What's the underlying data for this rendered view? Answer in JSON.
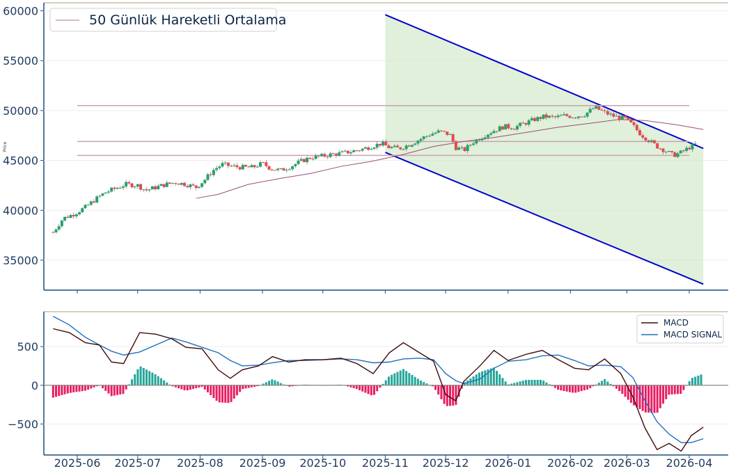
{
  "chart_data": [
    {
      "type": "candlestick",
      "ylabel": "Price",
      "ylim": [
        32000,
        60800
      ],
      "yticks": [
        35000,
        40000,
        45000,
        50000,
        55000,
        60000
      ],
      "ytick_labels": [
        "35000",
        "40000",
        "45000",
        "50000",
        "55000",
        "60000"
      ],
      "xticks": [
        "2025-06",
        "2025-07",
        "2025-08",
        "2025-09",
        "2025-10",
        "2025-11",
        "2025-12",
        "2026-01",
        "2026-02",
        "2026-03",
        "2026-04"
      ],
      "grid": true,
      "legend": {
        "placement": "top-left",
        "entries": [
          "50 Günlük Hareketli Ortalama"
        ]
      },
      "colors": {
        "up": "#26a269",
        "down": "#e8474f",
        "ma": "#9b4d73",
        "channel": "#0000cc",
        "channel_fill": "#cfe8c6",
        "hline": "#c9a0b4"
      },
      "horizontal_levels": [
        50500,
        46900,
        45500
      ],
      "channel": {
        "start": "2025-11-01",
        "end": "2026-04-08",
        "upper": [
          59600,
          46200
        ],
        "lower": [
          45800,
          32600
        ]
      },
      "price_points": [
        [
          "2025-05-20",
          37800
        ],
        [
          "2025-05-25",
          39200
        ],
        [
          "2025-05-30",
          39600
        ],
        [
          "2025-06-05",
          40300
        ],
        [
          "2025-06-10",
          41100
        ],
        [
          "2025-06-15",
          41800
        ],
        [
          "2025-06-20",
          42200
        ],
        [
          "2025-06-25",
          42600
        ],
        [
          "2025-07-01",
          42500
        ],
        [
          "2025-07-05",
          42000
        ],
        [
          "2025-07-10",
          42300
        ],
        [
          "2025-07-15",
          42600
        ],
        [
          "2025-07-20",
          42800
        ],
        [
          "2025-07-25",
          42600
        ],
        [
          "2025-07-30",
          42300
        ],
        [
          "2025-08-03",
          43000
        ],
        [
          "2025-08-08",
          44100
        ],
        [
          "2025-08-12",
          44600
        ],
        [
          "2025-08-17",
          44400
        ],
        [
          "2025-08-22",
          44300
        ],
        [
          "2025-08-27",
          44300
        ],
        [
          "2025-09-01",
          44700
        ],
        [
          "2025-09-05",
          44200
        ],
        [
          "2025-09-10",
          44000
        ],
        [
          "2025-09-15",
          44400
        ],
        [
          "2025-09-20",
          44900
        ],
        [
          "2025-09-25",
          45300
        ],
        [
          "2025-09-30",
          45400
        ],
        [
          "2025-10-05",
          45600
        ],
        [
          "2025-10-10",
          45700
        ],
        [
          "2025-10-15",
          45900
        ],
        [
          "2025-10-20",
          46100
        ],
        [
          "2025-10-25",
          46400
        ],
        [
          "2025-10-30",
          46700
        ],
        [
          "2025-11-03",
          46300
        ],
        [
          "2025-11-08",
          46200
        ],
        [
          "2025-11-13",
          46600
        ],
        [
          "2025-11-18",
          47100
        ],
        [
          "2025-11-23",
          47600
        ],
        [
          "2025-11-28",
          47900
        ],
        [
          "2025-12-03",
          47600
        ],
        [
          "2025-12-06",
          46300
        ],
        [
          "2025-12-10",
          46000
        ],
        [
          "2025-12-15",
          46900
        ],
        [
          "2025-12-20",
          47500
        ],
        [
          "2025-12-25",
          48000
        ],
        [
          "2025-12-30",
          48400
        ],
        [
          "2026-01-04",
          48300
        ],
        [
          "2026-01-09",
          48700
        ],
        [
          "2026-01-14",
          49100
        ],
        [
          "2026-01-19",
          49400
        ],
        [
          "2026-01-24",
          49300
        ],
        [
          "2026-01-29",
          49500
        ],
        [
          "2026-02-03",
          49400
        ],
        [
          "2026-02-08",
          49600
        ],
        [
          "2026-02-13",
          50300
        ],
        [
          "2026-02-18",
          49800
        ],
        [
          "2026-02-23",
          49400
        ],
        [
          "2026-02-28",
          49200
        ],
        [
          "2026-03-04",
          48500
        ],
        [
          "2026-03-08",
          47600
        ],
        [
          "2026-03-12",
          47000
        ],
        [
          "2026-03-16",
          46400
        ],
        [
          "2026-03-20",
          46000
        ],
        [
          "2026-03-24",
          45500
        ],
        [
          "2026-03-28",
          45800
        ],
        [
          "2026-04-01",
          46300
        ],
        [
          "2026-04-04",
          46600
        ]
      ],
      "ma_points": [
        [
          "2025-07-30",
          41200
        ],
        [
          "2025-08-10",
          41600
        ],
        [
          "2025-08-25",
          42600
        ],
        [
          "2025-09-10",
          43200
        ],
        [
          "2025-09-25",
          43700
        ],
        [
          "2025-10-10",
          44400
        ],
        [
          "2025-10-25",
          44900
        ],
        [
          "2025-11-10",
          45600
        ],
        [
          "2025-11-25",
          46400
        ],
        [
          "2025-12-10",
          46900
        ],
        [
          "2025-12-25",
          47300
        ],
        [
          "2026-01-10",
          47800
        ],
        [
          "2026-01-25",
          48300
        ],
        [
          "2026-02-10",
          48700
        ],
        [
          "2026-02-25",
          49100
        ],
        [
          "2026-03-10",
          49000
        ],
        [
          "2026-03-25",
          48600
        ],
        [
          "2026-04-08",
          48100
        ]
      ]
    },
    {
      "type": "line",
      "ylim": [
        -900,
        950
      ],
      "yticks": [
        -500,
        0,
        500
      ],
      "ytick_labels": [
        "−500",
        "0",
        "500"
      ],
      "xticks": [
        "2025-06",
        "2025-07",
        "2025-08",
        "2025-09",
        "2025-10",
        "2025-11",
        "2025-12",
        "2026-01",
        "2026-02",
        "2026-03",
        "2026-04"
      ],
      "grid": true,
      "legend": {
        "placement": "top-right",
        "entries": [
          "MACD",
          "MACD SIGNAL"
        ]
      },
      "colors": {
        "macd": "#3d0a0a",
        "signal": "#1f6fbf",
        "hist_pos": "#26a69a",
        "hist_neg": "#e91e63",
        "zero": "#888888"
      },
      "series": [
        {
          "name": "MACD",
          "points": [
            [
              "2025-05-20",
              730
            ],
            [
              "2025-05-28",
              680
            ],
            [
              "2025-06-05",
              550
            ],
            [
              "2025-06-12",
              520
            ],
            [
              "2025-06-18",
              300
            ],
            [
              "2025-06-24",
              280
            ],
            [
              "2025-07-02",
              680
            ],
            [
              "2025-07-10",
              660
            ],
            [
              "2025-07-18",
              600
            ],
            [
              "2025-07-25",
              490
            ],
            [
              "2025-08-02",
              470
            ],
            [
              "2025-08-10",
              200
            ],
            [
              "2025-08-16",
              90
            ],
            [
              "2025-08-22",
              200
            ],
            [
              "2025-08-30",
              250
            ],
            [
              "2025-09-06",
              370
            ],
            [
              "2025-09-14",
              300
            ],
            [
              "2025-09-22",
              330
            ],
            [
              "2025-10-01",
              330
            ],
            [
              "2025-10-10",
              350
            ],
            [
              "2025-10-18",
              280
            ],
            [
              "2025-10-26",
              150
            ],
            [
              "2025-11-03",
              420
            ],
            [
              "2025-11-10",
              550
            ],
            [
              "2025-11-18",
              420
            ],
            [
              "2025-11-25",
              310
            ],
            [
              "2025-12-01",
              -120
            ],
            [
              "2025-12-06",
              -200
            ],
            [
              "2025-12-10",
              50
            ],
            [
              "2025-12-18",
              250
            ],
            [
              "2025-12-25",
              450
            ],
            [
              "2026-01-01",
              320
            ],
            [
              "2026-01-10",
              400
            ],
            [
              "2026-01-18",
              450
            ],
            [
              "2026-01-26",
              330
            ],
            [
              "2026-02-03",
              220
            ],
            [
              "2026-02-10",
              200
            ],
            [
              "2026-02-18",
              340
            ],
            [
              "2026-02-26",
              150
            ],
            [
              "2026-03-04",
              -150
            ],
            [
              "2026-03-10",
              -550
            ],
            [
              "2026-03-16",
              -830
            ],
            [
              "2026-03-22",
              -750
            ],
            [
              "2026-03-28",
              -850
            ],
            [
              "2026-04-02",
              -650
            ],
            [
              "2026-04-08",
              -540
            ]
          ]
        },
        {
          "name": "MACD SIGNAL",
          "points": [
            [
              "2025-05-20",
              890
            ],
            [
              "2025-05-28",
              780
            ],
            [
              "2025-06-05",
              620
            ],
            [
              "2025-06-12",
              520
            ],
            [
              "2025-06-18",
              440
            ],
            [
              "2025-06-24",
              390
            ],
            [
              "2025-07-02",
              430
            ],
            [
              "2025-07-10",
              520
            ],
            [
              "2025-07-18",
              610
            ],
            [
              "2025-07-25",
              560
            ],
            [
              "2025-08-02",
              490
            ],
            [
              "2025-08-10",
              420
            ],
            [
              "2025-08-16",
              320
            ],
            [
              "2025-08-22",
              250
            ],
            [
              "2025-08-30",
              260
            ],
            [
              "2025-09-06",
              290
            ],
            [
              "2025-09-14",
              320
            ],
            [
              "2025-09-22",
              320
            ],
            [
              "2025-10-01",
              330
            ],
            [
              "2025-10-10",
              340
            ],
            [
              "2025-10-18",
              330
            ],
            [
              "2025-10-26",
              290
            ],
            [
              "2025-11-03",
              300
            ],
            [
              "2025-11-10",
              340
            ],
            [
              "2025-11-18",
              350
            ],
            [
              "2025-11-25",
              330
            ],
            [
              "2025-12-01",
              150
            ],
            [
              "2025-12-06",
              60
            ],
            [
              "2025-12-10",
              20
            ],
            [
              "2025-12-18",
              80
            ],
            [
              "2025-12-25",
              220
            ],
            [
              "2026-01-01",
              310
            ],
            [
              "2026-01-10",
              330
            ],
            [
              "2026-01-18",
              380
            ],
            [
              "2026-01-26",
              390
            ],
            [
              "2026-02-03",
              320
            ],
            [
              "2026-02-10",
              250
            ],
            [
              "2026-02-18",
              260
            ],
            [
              "2026-02-26",
              240
            ],
            [
              "2026-03-04",
              100
            ],
            [
              "2026-03-10",
              -200
            ],
            [
              "2026-03-16",
              -470
            ],
            [
              "2026-03-22",
              -630
            ],
            [
              "2026-03-28",
              -740
            ],
            [
              "2026-04-02",
              -740
            ],
            [
              "2026-04-08",
              -690
            ]
          ]
        }
      ]
    }
  ]
}
